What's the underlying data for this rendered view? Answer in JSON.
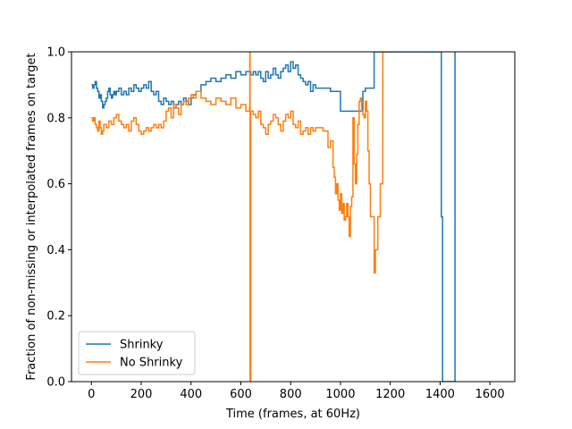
{
  "chart_data": {
    "type": "line",
    "title": "",
    "xlabel": "Time (frames, at 60Hz)",
    "ylabel": "Fraction of non-missing or interpolated frames on target",
    "xlim": [
      -80,
      1700
    ],
    "ylim": [
      0.0,
      1.0
    ],
    "xticks": [
      0,
      200,
      400,
      600,
      800,
      1000,
      1200,
      1400,
      1600
    ],
    "yticks": [
      0.0,
      0.2,
      0.4,
      0.6,
      0.8,
      1.0
    ],
    "xtick_labels": [
      "0",
      "200",
      "400",
      "600",
      "800",
      "1000",
      "1200",
      "1400",
      "1600"
    ],
    "ytick_labels": [
      "0.0",
      "0.2",
      "0.4",
      "0.6",
      "0.8",
      "1.0"
    ],
    "grid": false,
    "legend_position": "lower-left",
    "series": [
      {
        "name": "Shrinky",
        "color": "#1f77b4",
        "x": [
          0,
          5,
          10,
          15,
          20,
          25,
          30,
          35,
          40,
          45,
          50,
          55,
          60,
          65,
          70,
          75,
          80,
          85,
          90,
          95,
          100,
          110,
          120,
          130,
          140,
          150,
          160,
          170,
          180,
          190,
          200,
          210,
          220,
          230,
          240,
          250,
          260,
          270,
          280,
          290,
          300,
          310,
          320,
          330,
          340,
          350,
          360,
          370,
          380,
          390,
          400,
          410,
          420,
          440,
          460,
          480,
          500,
          520,
          540,
          560,
          580,
          600,
          620,
          640,
          650,
          660,
          670,
          680,
          690,
          700,
          710,
          720,
          730,
          740,
          750,
          760,
          770,
          780,
          790,
          800,
          810,
          820,
          830,
          840,
          850,
          860,
          870,
          880,
          890,
          900,
          920,
          940,
          960,
          980,
          1000,
          1020,
          1040,
          1060,
          1080,
          1090,
          1100,
          1110,
          1120,
          1130,
          1135,
          1140,
          1150,
          1400,
          1405,
          1410,
          1420,
          1450,
          1455,
          1460
        ],
        "y": [
          0.9,
          0.89,
          0.9,
          0.91,
          0.89,
          0.88,
          0.86,
          0.87,
          0.85,
          0.83,
          0.84,
          0.85,
          0.86,
          0.88,
          0.89,
          0.87,
          0.86,
          0.87,
          0.88,
          0.87,
          0.88,
          0.89,
          0.87,
          0.88,
          0.87,
          0.89,
          0.88,
          0.9,
          0.89,
          0.88,
          0.89,
          0.9,
          0.89,
          0.91,
          0.88,
          0.87,
          0.88,
          0.85,
          0.84,
          0.86,
          0.85,
          0.84,
          0.85,
          0.83,
          0.84,
          0.85,
          0.84,
          0.86,
          0.85,
          0.84,
          0.86,
          0.87,
          0.88,
          0.9,
          0.91,
          0.92,
          0.91,
          0.92,
          0.93,
          0.92,
          0.94,
          0.93,
          0.94,
          0.93,
          0.94,
          0.93,
          0.94,
          0.92,
          0.91,
          0.94,
          0.92,
          0.93,
          0.95,
          0.93,
          0.92,
          0.94,
          0.95,
          0.96,
          0.94,
          0.97,
          0.95,
          0.96,
          0.93,
          0.92,
          0.91,
          0.9,
          0.91,
          0.88,
          0.9,
          0.89,
          0.89,
          0.89,
          0.88,
          0.88,
          0.82,
          0.82,
          0.82,
          0.82,
          0.82,
          0.88,
          0.89,
          0.89,
          0.89,
          0.89,
          1.0,
          1.0,
          1.0,
          1.0,
          0.5,
          0.0,
          0.0,
          0.0,
          0.0,
          1.0
        ]
      },
      {
        "name": "No Shrinky",
        "color": "#ff7f0e",
        "x": [
          0,
          5,
          10,
          15,
          20,
          25,
          30,
          35,
          40,
          45,
          50,
          60,
          70,
          80,
          90,
          100,
          110,
          120,
          130,
          140,
          150,
          160,
          170,
          180,
          190,
          200,
          210,
          220,
          230,
          240,
          250,
          260,
          270,
          280,
          290,
          300,
          310,
          320,
          330,
          340,
          350,
          360,
          370,
          380,
          390,
          400,
          410,
          420,
          440,
          460,
          480,
          500,
          520,
          540,
          560,
          580,
          600,
          620,
          635,
          636,
          637,
          640,
          650,
          660,
          670,
          680,
          690,
          700,
          710,
          720,
          730,
          740,
          750,
          760,
          770,
          780,
          790,
          800,
          810,
          820,
          830,
          840,
          850,
          860,
          870,
          880,
          890,
          900,
          910,
          920,
          930,
          940,
          950,
          960,
          970,
          975,
          980,
          985,
          990,
          995,
          1000,
          1005,
          1010,
          1015,
          1020,
          1025,
          1030,
          1035,
          1040,
          1045,
          1050,
          1055,
          1060,
          1065,
          1070,
          1075,
          1080,
          1085,
          1090,
          1095,
          1100,
          1105,
          1110,
          1115,
          1120,
          1125,
          1130,
          1135,
          1140,
          1145,
          1150,
          1160,
          1170,
          1175,
          1180,
          1190,
          1200,
          1205,
          1210
        ],
        "y": [
          0.8,
          0.79,
          0.8,
          0.78,
          0.77,
          0.76,
          0.79,
          0.77,
          0.75,
          0.76,
          0.78,
          0.77,
          0.79,
          0.78,
          0.8,
          0.81,
          0.79,
          0.78,
          0.77,
          0.78,
          0.76,
          0.79,
          0.8,
          0.78,
          0.76,
          0.75,
          0.76,
          0.77,
          0.76,
          0.77,
          0.78,
          0.77,
          0.78,
          0.77,
          0.79,
          0.82,
          0.83,
          0.8,
          0.84,
          0.83,
          0.81,
          0.84,
          0.85,
          0.84,
          0.86,
          0.87,
          0.86,
          0.88,
          0.86,
          0.85,
          0.84,
          0.86,
          0.85,
          0.84,
          0.86,
          0.83,
          0.84,
          0.82,
          0.83,
          1.0,
          0.0,
          0.82,
          0.81,
          0.8,
          0.82,
          0.78,
          0.77,
          0.75,
          0.78,
          0.79,
          0.81,
          0.8,
          0.78,
          0.76,
          0.79,
          0.81,
          0.8,
          0.82,
          0.78,
          0.77,
          0.79,
          0.75,
          0.76,
          0.77,
          0.75,
          0.77,
          0.76,
          0.77,
          0.77,
          0.77,
          0.76,
          0.76,
          0.71,
          0.73,
          0.65,
          0.62,
          0.57,
          0.6,
          0.55,
          0.52,
          0.57,
          0.51,
          0.54,
          0.49,
          0.5,
          0.54,
          0.5,
          0.44,
          0.53,
          0.56,
          0.8,
          0.66,
          0.6,
          0.69,
          0.78,
          0.85,
          0.86,
          0.82,
          0.81,
          0.8,
          0.85,
          0.82,
          0.7,
          0.6,
          0.5,
          0.5,
          0.5,
          0.33,
          0.4,
          0.4,
          0.5,
          0.6,
          1.0,
          1.0,
          1.0,
          1.0,
          1.0,
          1.0,
          1.0
        ]
      }
    ]
  }
}
